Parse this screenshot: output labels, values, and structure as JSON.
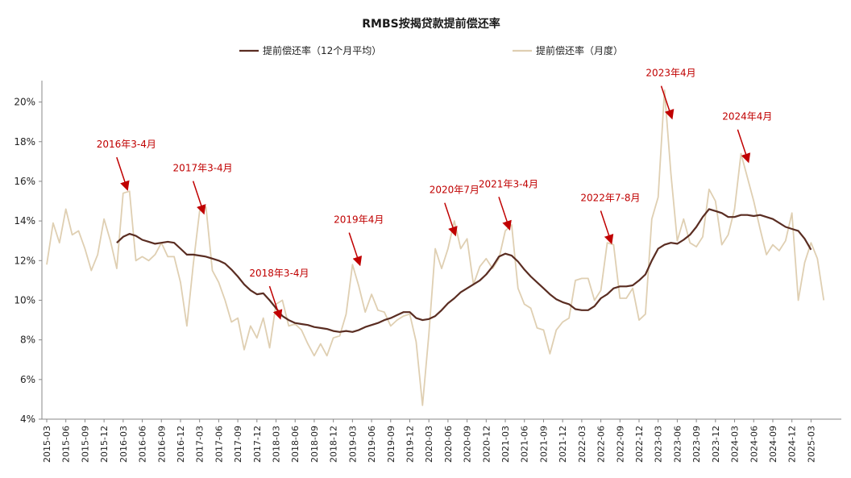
{
  "chart_data": {
    "type": "line",
    "title": "RMBS按揭贷款提前偿还率",
    "xlabel": "",
    "ylabel": "",
    "y_unit": "%",
    "ylim": [
      4,
      21
    ],
    "yticks": [
      4,
      6,
      8,
      10,
      12,
      14,
      16,
      18,
      20
    ],
    "x_start": "2015-03",
    "xticks": [
      "2015-03",
      "2015-06",
      "2015-09",
      "2015-12",
      "2016-03",
      "2016-06",
      "2016-09",
      "2016-12",
      "2017-03",
      "2017-06",
      "2017-09",
      "2017-12",
      "2018-03",
      "2018-06",
      "2018-09",
      "2018-12",
      "2019-03",
      "2019-06",
      "2019-09",
      "2019-12",
      "2020-03",
      "2020-06",
      "2020-09",
      "2020-12",
      "2021-03",
      "2021-06",
      "2021-09",
      "2021-12",
      "2022-03",
      "2022-06",
      "2022-09",
      "2022-12",
      "2023-03",
      "2023-06",
      "2023-09",
      "2023-12",
      "2024-03",
      "2024-06",
      "2024-09",
      "2024-12",
      "2025-03"
    ],
    "legend_position": "top",
    "grid": false,
    "series": [
      {
        "name": "提前偿还率（12个月平均）",
        "color": "#5a2d22",
        "start_index": 11,
        "values": [
          12.9,
          13.2,
          13.35,
          13.25,
          13.05,
          12.95,
          12.85,
          12.9,
          12.95,
          12.9,
          12.6,
          12.3,
          12.3,
          12.25,
          12.2,
          12.1,
          12.0,
          11.85,
          11.55,
          11.2,
          10.8,
          10.5,
          10.3,
          10.35,
          10.0,
          9.6,
          9.2,
          9.0,
          8.85,
          8.8,
          8.75,
          8.65,
          8.6,
          8.55,
          8.45,
          8.4,
          8.45,
          8.4,
          8.5,
          8.65,
          8.75,
          8.85,
          9.0,
          9.1,
          9.25,
          9.4,
          9.4,
          9.1,
          9.0,
          9.05,
          9.2,
          9.5,
          9.85,
          10.1,
          10.4,
          10.6,
          10.8,
          11.0,
          11.3,
          11.7,
          12.2,
          12.35,
          12.25,
          11.95,
          11.55,
          11.2,
          10.9,
          10.6,
          10.3,
          10.05,
          9.9,
          9.8,
          9.55,
          9.5,
          9.5,
          9.7,
          10.1,
          10.3,
          10.6,
          10.7,
          10.7,
          10.75,
          11.0,
          11.3,
          12.0,
          12.6,
          12.8,
          12.9,
          12.85,
          13.05,
          13.3,
          13.7,
          14.2,
          14.6,
          14.5,
          14.4,
          14.2,
          14.2,
          14.3,
          14.3,
          14.25,
          14.3,
          14.2,
          14.1,
          13.9,
          13.7,
          13.6,
          13.5,
          13.1,
          12.55
        ]
      },
      {
        "name": "提前偿还率（月度）",
        "color": "#dfcfb2",
        "start_index": 0,
        "values": [
          11.8,
          13.9,
          12.9,
          14.6,
          13.3,
          13.5,
          12.6,
          11.5,
          12.3,
          14.1,
          13.0,
          11.6,
          15.4,
          15.5,
          12.0,
          12.2,
          12.0,
          12.3,
          12.9,
          12.2,
          12.2,
          10.9,
          8.7,
          11.8,
          14.5,
          14.7,
          11.5,
          10.9,
          10.0,
          8.9,
          9.1,
          7.5,
          8.7,
          8.1,
          9.1,
          7.6,
          9.8,
          10.0,
          8.7,
          8.8,
          8.5,
          7.8,
          7.2,
          7.8,
          7.2,
          8.1,
          8.2,
          9.3,
          11.8,
          10.7,
          9.4,
          10.3,
          9.5,
          9.4,
          8.7,
          9.0,
          9.2,
          9.3,
          7.9,
          4.7,
          8.3,
          12.6,
          11.6,
          12.6,
          14.0,
          12.6,
          13.1,
          10.8,
          11.7,
          12.1,
          11.6,
          12.1,
          13.5,
          13.8,
          10.6,
          9.8,
          9.6,
          8.6,
          8.5,
          7.3,
          8.5,
          8.9,
          9.1,
          11.0,
          11.1,
          11.1,
          10.0,
          10.5,
          12.9,
          12.8,
          10.1,
          10.1,
          10.6,
          9.0,
          9.3,
          14.1,
          15.2,
          20.6,
          16.4,
          13.0,
          14.1,
          12.9,
          12.7,
          13.2,
          15.6,
          15.0,
          12.8,
          13.3,
          14.6,
          17.4,
          16.2,
          15.0,
          13.6,
          12.3,
          12.8,
          12.5,
          13.0,
          14.4,
          10.0,
          11.9,
          12.9,
          12.1,
          10.0
        ]
      }
    ],
    "annotations": [
      {
        "text": "2016年3-4月",
        "x_index": 12.5,
        "label_y": 17.7
      },
      {
        "text": "2017年3-4月",
        "x_index": 24.5,
        "label_y": 16.5
      },
      {
        "text": "2018年3-4月",
        "x_index": 36.5,
        "label_y": 11.2
      },
      {
        "text": "2019年4月",
        "x_index": 49,
        "label_y": 13.9
      },
      {
        "text": "2020年7月",
        "x_index": 64,
        "label_y": 15.4
      },
      {
        "text": "2021年3-4月",
        "x_index": 72.5,
        "label_y": 15.7
      },
      {
        "text": "2022年7-8月",
        "x_index": 88.5,
        "label_y": 15.0
      },
      {
        "text": "2023年4月",
        "x_index": 98,
        "label_y": 21.3
      },
      {
        "text": "2024年4月",
        "x_index": 110,
        "label_y": 19.1
      }
    ]
  }
}
